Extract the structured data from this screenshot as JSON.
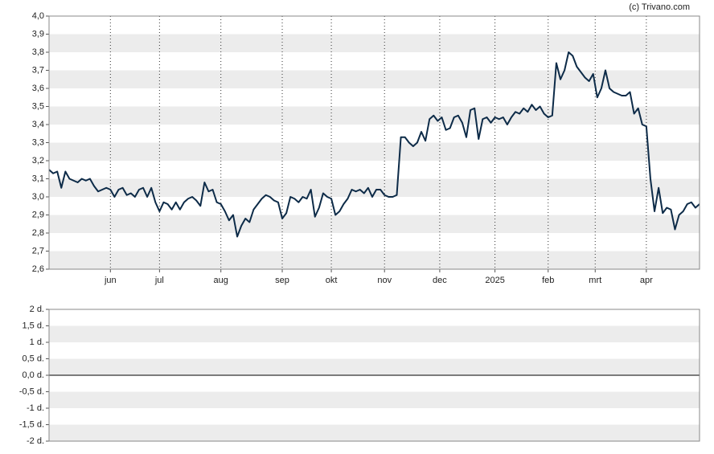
{
  "credit": "(c) Trivano.com",
  "chart_data": [
    {
      "type": "line",
      "color": "#0d2b48",
      "xlim": [
        0,
        159
      ],
      "xticks": [
        {
          "value": 15,
          "label": "jun"
        },
        {
          "value": 27,
          "label": "jul"
        },
        {
          "value": 42,
          "label": "aug"
        },
        {
          "value": 57,
          "label": "sep"
        },
        {
          "value": 69,
          "label": "okt"
        },
        {
          "value": 82,
          "label": "nov"
        },
        {
          "value": 95.5,
          "label": "dec"
        },
        {
          "value": 109,
          "label": "2025"
        },
        {
          "value": 122,
          "label": "feb"
        },
        {
          "value": 133.5,
          "label": "mrt"
        },
        {
          "value": 146,
          "label": "apr"
        }
      ],
      "ylim": [
        2.6,
        4.0
      ],
      "yticks": [
        {
          "value": 2.6,
          "label": "2,6"
        },
        {
          "value": 2.7,
          "label": "2,7"
        },
        {
          "value": 2.8,
          "label": "2,8"
        },
        {
          "value": 2.9,
          "label": "2,9"
        },
        {
          "value": 3.0,
          "label": "3,0"
        },
        {
          "value": 3.1,
          "label": "3,1"
        },
        {
          "value": 3.2,
          "label": "3,2"
        },
        {
          "value": 3.3,
          "label": "3,3"
        },
        {
          "value": 3.4,
          "label": "3,4"
        },
        {
          "value": 3.5,
          "label": "3,5"
        },
        {
          "value": 3.6,
          "label": "3,6"
        },
        {
          "value": 3.7,
          "label": "3,7"
        },
        {
          "value": 3.8,
          "label": "3,8"
        },
        {
          "value": 3.9,
          "label": "3,9"
        },
        {
          "value": 4.0,
          "label": "4,0"
        }
      ],
      "grid": true,
      "values": [
        3.15,
        3.13,
        3.14,
        3.05,
        3.14,
        3.1,
        3.09,
        3.08,
        3.1,
        3.09,
        3.1,
        3.06,
        3.03,
        3.04,
        3.05,
        3.04,
        3.0,
        3.04,
        3.05,
        3.01,
        3.02,
        3.0,
        3.04,
        3.05,
        3.0,
        3.05,
        2.97,
        2.92,
        2.97,
        2.96,
        2.93,
        2.97,
        2.93,
        2.97,
        2.99,
        3.0,
        2.98,
        2.95,
        3.08,
        3.03,
        3.04,
        2.97,
        2.96,
        2.92,
        2.87,
        2.9,
        2.78,
        2.84,
        2.88,
        2.86,
        2.93,
        2.96,
        2.99,
        3.01,
        3.0,
        2.98,
        2.97,
        2.88,
        2.91,
        3.0,
        2.99,
        2.97,
        3.0,
        2.99,
        3.04,
        2.89,
        2.94,
        3.02,
        3.0,
        2.99,
        2.9,
        2.92,
        2.96,
        2.99,
        3.04,
        3.03,
        3.04,
        3.02,
        3.05,
        3.0,
        3.04,
        3.04,
        3.01,
        3.0,
        3.0,
        3.01,
        3.33,
        3.33,
        3.3,
        3.28,
        3.3,
        3.36,
        3.31,
        3.43,
        3.45,
        3.42,
        3.44,
        3.37,
        3.38,
        3.44,
        3.45,
        3.41,
        3.33,
        3.48,
        3.49,
        3.32,
        3.43,
        3.44,
        3.41,
        3.44,
        3.43,
        3.44,
        3.4,
        3.44,
        3.47,
        3.46,
        3.49,
        3.47,
        3.51,
        3.48,
        3.5,
        3.46,
        3.44,
        3.45,
        3.74,
        3.65,
        3.7,
        3.8,
        3.78,
        3.72,
        3.69,
        3.66,
        3.64,
        3.68,
        3.55,
        3.6,
        3.7,
        3.6,
        3.58,
        3.57,
        3.56,
        3.56,
        3.58,
        3.46,
        3.49,
        3.4,
        3.39,
        3.1,
        2.92,
        3.05,
        2.91,
        2.94,
        2.93,
        2.82,
        2.9,
        2.92,
        2.96,
        2.97,
        2.94,
        2.96
      ]
    },
    {
      "type": "bar",
      "ylim": [
        -2,
        2
      ],
      "yticks": [
        {
          "value": -2,
          "label": "-2 d."
        },
        {
          "value": -1.5,
          "label": "-1,5 d."
        },
        {
          "value": -1,
          "label": "-1 d."
        },
        {
          "value": -0.5,
          "label": "-0,5 d."
        },
        {
          "value": 0,
          "label": "0,0 d."
        },
        {
          "value": 0.5,
          "label": "0,5 d."
        },
        {
          "value": 1,
          "label": "1 d."
        },
        {
          "value": 1.5,
          "label": "1,5 d."
        },
        {
          "value": 2,
          "label": "2 d."
        }
      ],
      "grid": true
    }
  ]
}
